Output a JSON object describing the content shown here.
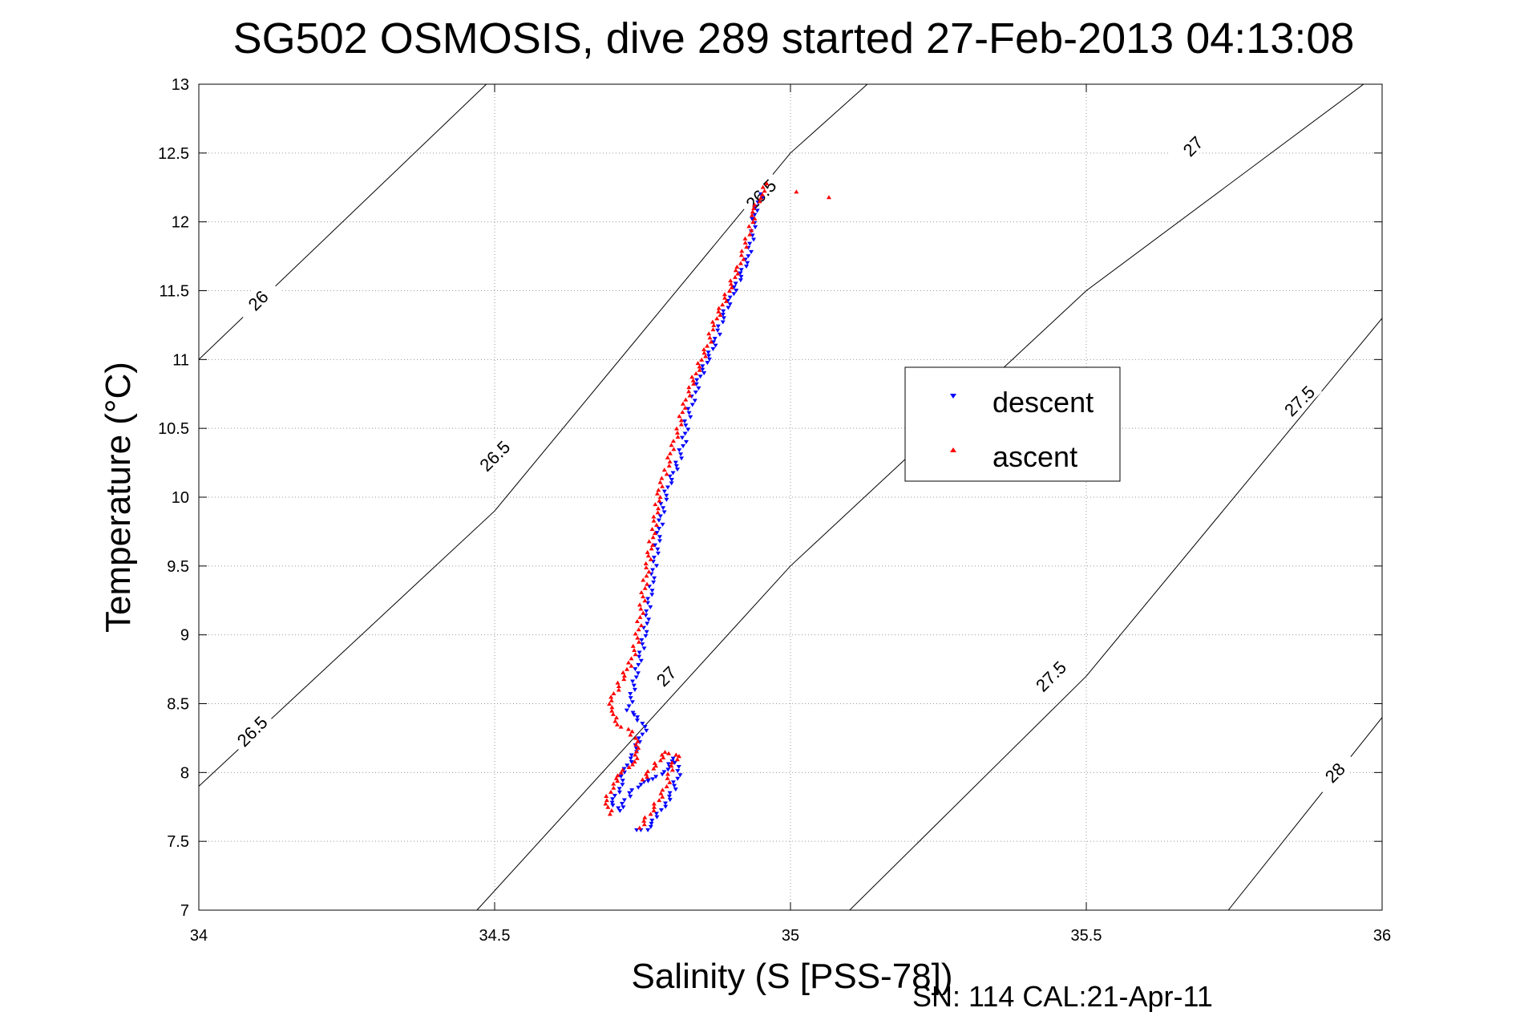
{
  "chart_data": {
    "type": "scatter",
    "title": "SG502 OSMOSIS, dive 289 started 27-Feb-2013 04:13:08",
    "xlabel": "Salinity (S [PSS-78])",
    "ylabel": "Temperature (°C)",
    "xlim": [
      34,
      36
    ],
    "ylim": [
      7,
      13
    ],
    "xticks": [
      34,
      34.5,
      35,
      35.5,
      36
    ],
    "xtick_labels": [
      "34",
      "34.5",
      "35",
      "35.5",
      "36"
    ],
    "yticks": [
      7,
      7.5,
      8,
      8.5,
      9,
      9.5,
      10,
      10.5,
      11,
      11.5,
      12,
      12.5,
      13
    ],
    "ytick_labels": [
      "7",
      "7.5",
      "8",
      "8.5",
      "9",
      "9.5",
      "10",
      "10.5",
      "11",
      "11.5",
      "12",
      "12.5",
      "13"
    ],
    "grid": true,
    "legend_position": "right-center",
    "footer": "SN: 114  CAL:21-Apr-11",
    "colors": {
      "descent": "#0000ff",
      "ascent": "#ff0000",
      "contour": "#000000"
    },
    "contours": [
      {
        "label": "26",
        "points": [
          [
            34.0,
            11.0
          ],
          [
            34.486,
            13.0
          ]
        ],
        "label_pos": [
          34.1,
          11.43
        ]
      },
      {
        "label": "26.5",
        "points": [
          [
            34.0,
            7.9
          ],
          [
            34.5,
            9.9
          ],
          [
            35.0,
            12.5
          ],
          [
            35.13,
            13.0
          ]
        ],
        "label_pos": [
          34.5,
          10.3
        ]
      },
      {
        "label": "26.5",
        "points": [],
        "label_pos": [
          34.09,
          8.3
        ]
      },
      {
        "label": "26.5",
        "points": [],
        "label_pos": [
          34.95,
          12.2
        ]
      },
      {
        "label": "27",
        "points": [
          [
            34.47,
            7.0
          ],
          [
            35.0,
            9.5
          ],
          [
            35.5,
            11.5
          ],
          [
            36.0,
            13.1
          ]
        ],
        "label_pos": [
          34.79,
          8.7
        ]
      },
      {
        "label": "27",
        "points": [],
        "label_pos": [
          35.68,
          12.55
        ]
      },
      {
        "label": "27.5",
        "points": [
          [
            35.1,
            7.0
          ],
          [
            35.5,
            8.7
          ],
          [
            36.0,
            11.3
          ]
        ],
        "label_pos": [
          35.44,
          8.7
        ]
      },
      {
        "label": "27.5",
        "points": [],
        "label_pos": [
          35.86,
          10.7
        ]
      },
      {
        "label": "28",
        "points": [
          [
            35.74,
            7.0
          ],
          [
            36.0,
            8.4
          ]
        ],
        "label_pos": [
          35.92,
          8.0
        ]
      }
    ],
    "series": [
      {
        "name": "descent",
        "marker": "triangle-down",
        "path": [
          [
            34.95,
            12.2
          ],
          [
            34.94,
            12.05
          ],
          [
            34.935,
            11.9
          ],
          [
            34.93,
            11.75
          ],
          [
            34.915,
            11.6
          ],
          [
            34.9,
            11.45
          ],
          [
            34.885,
            11.3
          ],
          [
            34.875,
            11.15
          ],
          [
            34.86,
            11.0
          ],
          [
            34.845,
            10.85
          ],
          [
            34.835,
            10.7
          ],
          [
            34.825,
            10.55
          ],
          [
            34.82,
            10.4
          ],
          [
            34.81,
            10.25
          ],
          [
            34.795,
            10.1
          ],
          [
            34.785,
            9.95
          ],
          [
            34.78,
            9.8
          ],
          [
            34.775,
            9.65
          ],
          [
            34.77,
            9.5
          ],
          [
            34.765,
            9.35
          ],
          [
            34.76,
            9.2
          ],
          [
            34.755,
            9.05
          ],
          [
            34.75,
            8.9
          ],
          [
            34.74,
            8.75
          ],
          [
            34.735,
            8.6
          ],
          [
            34.725,
            8.45
          ],
          [
            34.74,
            8.4
          ],
          [
            34.755,
            8.33
          ],
          [
            34.745,
            8.22
          ],
          [
            34.73,
            8.1
          ],
          [
            34.72,
            8.0
          ],
          [
            34.71,
            7.88
          ],
          [
            34.7,
            7.78
          ],
          [
            34.71,
            7.72
          ],
          [
            34.73,
            7.85
          ],
          [
            34.75,
            7.93
          ],
          [
            34.77,
            7.95
          ],
          [
            34.79,
            8.02
          ],
          [
            34.805,
            8.1
          ],
          [
            34.81,
            7.98
          ],
          [
            34.8,
            7.85
          ],
          [
            34.785,
            7.75
          ],
          [
            34.77,
            7.65
          ],
          [
            34.755,
            7.58
          ],
          [
            34.74,
            7.58
          ]
        ]
      },
      {
        "name": "ascent",
        "marker": "triangle-up",
        "path": [
          [
            34.695,
            7.7
          ],
          [
            34.69,
            7.8
          ],
          [
            34.7,
            7.92
          ],
          [
            34.715,
            8.0
          ],
          [
            34.735,
            8.08
          ],
          [
            34.745,
            8.18
          ],
          [
            34.73,
            8.3
          ],
          [
            34.71,
            8.35
          ],
          [
            34.695,
            8.45
          ],
          [
            34.7,
            8.55
          ],
          [
            34.715,
            8.68
          ],
          [
            34.73,
            8.8
          ],
          [
            34.74,
            8.95
          ],
          [
            34.745,
            9.1
          ],
          [
            34.75,
            9.25
          ],
          [
            34.755,
            9.4
          ],
          [
            34.76,
            9.55
          ],
          [
            34.765,
            9.68
          ],
          [
            34.77,
            9.8
          ],
          [
            34.775,
            9.95
          ],
          [
            34.78,
            10.08
          ],
          [
            34.79,
            10.2
          ],
          [
            34.8,
            10.35
          ],
          [
            34.81,
            10.5
          ],
          [
            34.82,
            10.65
          ],
          [
            34.83,
            10.8
          ],
          [
            34.845,
            10.95
          ],
          [
            34.86,
            11.1
          ],
          [
            34.87,
            11.25
          ],
          [
            34.885,
            11.4
          ],
          [
            34.9,
            11.55
          ],
          [
            34.915,
            11.7
          ],
          [
            34.925,
            11.85
          ],
          [
            34.935,
            12.0
          ],
          [
            34.94,
            12.1
          ],
          [
            34.95,
            12.2
          ],
          [
            34.96,
            12.28
          ]
        ],
        "extra_points": [
          [
            35.01,
            12.22
          ],
          [
            35.065,
            12.18
          ]
        ],
        "loop": [
          [
            34.745,
            7.6
          ],
          [
            34.77,
            7.75
          ],
          [
            34.79,
            7.9
          ],
          [
            34.8,
            8.05
          ],
          [
            34.81,
            8.12
          ],
          [
            34.79,
            8.15
          ],
          [
            34.77,
            8.05
          ],
          [
            34.75,
            7.95
          ]
        ]
      }
    ]
  }
}
